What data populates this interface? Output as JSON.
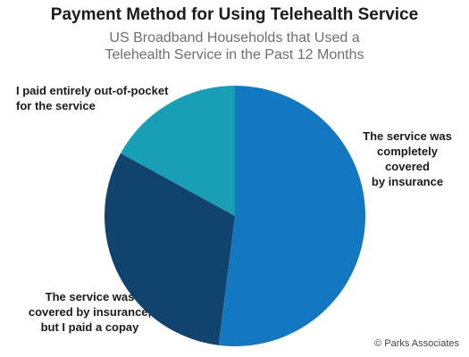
{
  "chart_data": {
    "type": "pie",
    "title": "Payment Method for Using Telehealth Service",
    "subtitle_lines": [
      "US Broadband Households that Used a",
      "Telehealth Service in the Past 12 Months"
    ],
    "slices": [
      {
        "label_lines": [
          "The service was",
          "completely covered",
          "by insurance"
        ],
        "value": 52,
        "color": "#1478c0"
      },
      {
        "label_lines": [
          "The service was",
          "covered by insurance,",
          "but I paid a copay"
        ],
        "value": 31,
        "color": "#11436f"
      },
      {
        "label_lines": [
          "I paid entirely out-of-pocket",
          "for the service"
        ],
        "value": 17,
        "color": "#189fb5"
      }
    ],
    "start_angle_deg": 0,
    "direction": "clockwise"
  },
  "credit": "© Parks Associates"
}
